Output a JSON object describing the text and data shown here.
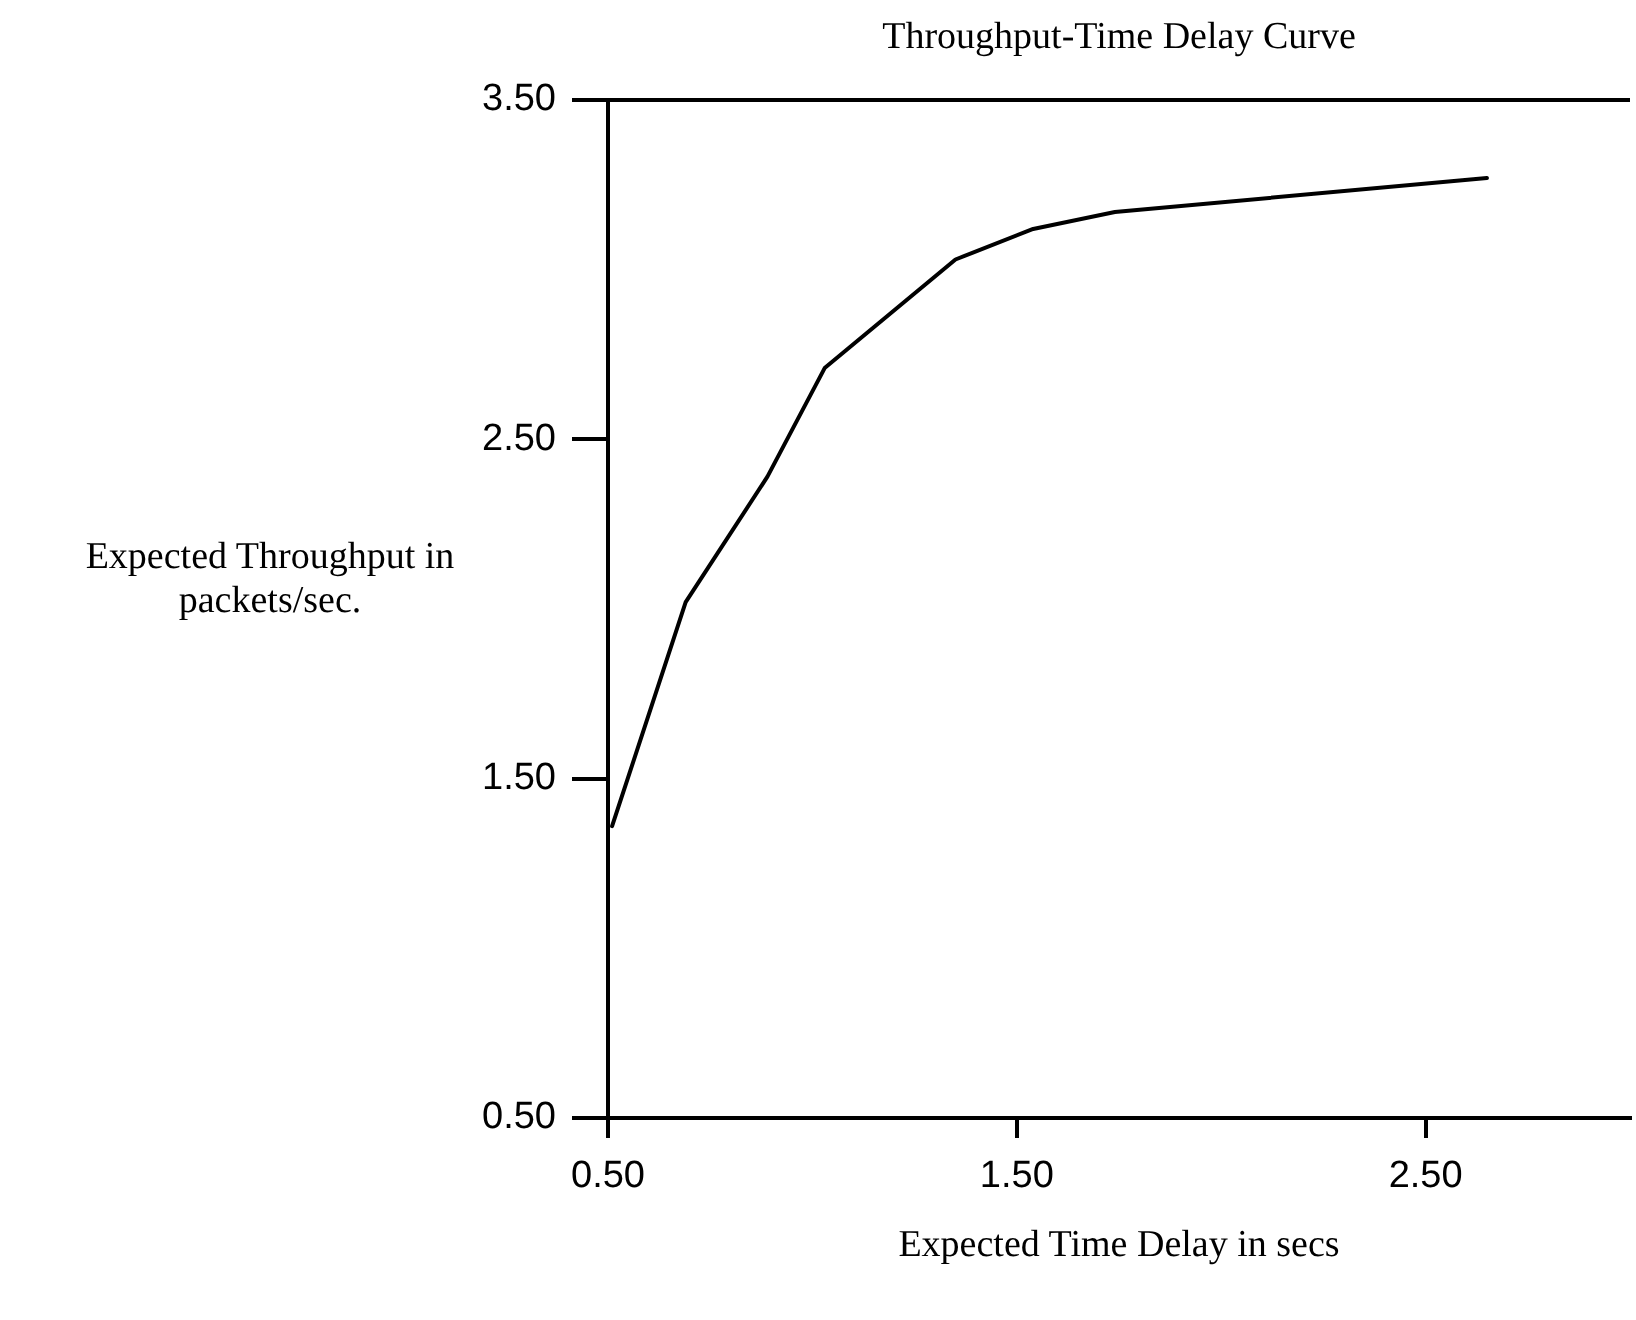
{
  "chart_data": {
    "type": "line",
    "title": "Throughput-Time Delay Curve",
    "xlabel": "Expected Time Delay in secs",
    "ylabel": "Expected Throughput in packets/sec.",
    "x": [
      0.51,
      0.69,
      0.89,
      1.03,
      1.35,
      1.54,
      1.74,
      2.65
    ],
    "series": [
      {
        "color": "#000000",
        "values": [
          1.36,
          2.02,
          2.39,
          2.71,
          3.03,
          3.12,
          3.17,
          3.27
        ]
      }
    ],
    "xlim": [
      0.5,
      3.0
    ],
    "xticks": [
      {
        "value": 0.5,
        "label": "0.50"
      },
      {
        "value": 1.5,
        "label": "1.50"
      },
      {
        "value": 2.5,
        "label": "2.50"
      }
    ],
    "ylim": [
      0.5,
      3.5
    ],
    "yticks": [
      {
        "value": 0.5,
        "label": "0.50"
      },
      {
        "value": 1.5,
        "label": "1.50"
      },
      {
        "value": 2.5,
        "label": "2.50"
      },
      {
        "value": 3.5,
        "label": "3.50"
      }
    ],
    "grid": false,
    "legend": false,
    "marker": "none",
    "line_style": "solid"
  }
}
